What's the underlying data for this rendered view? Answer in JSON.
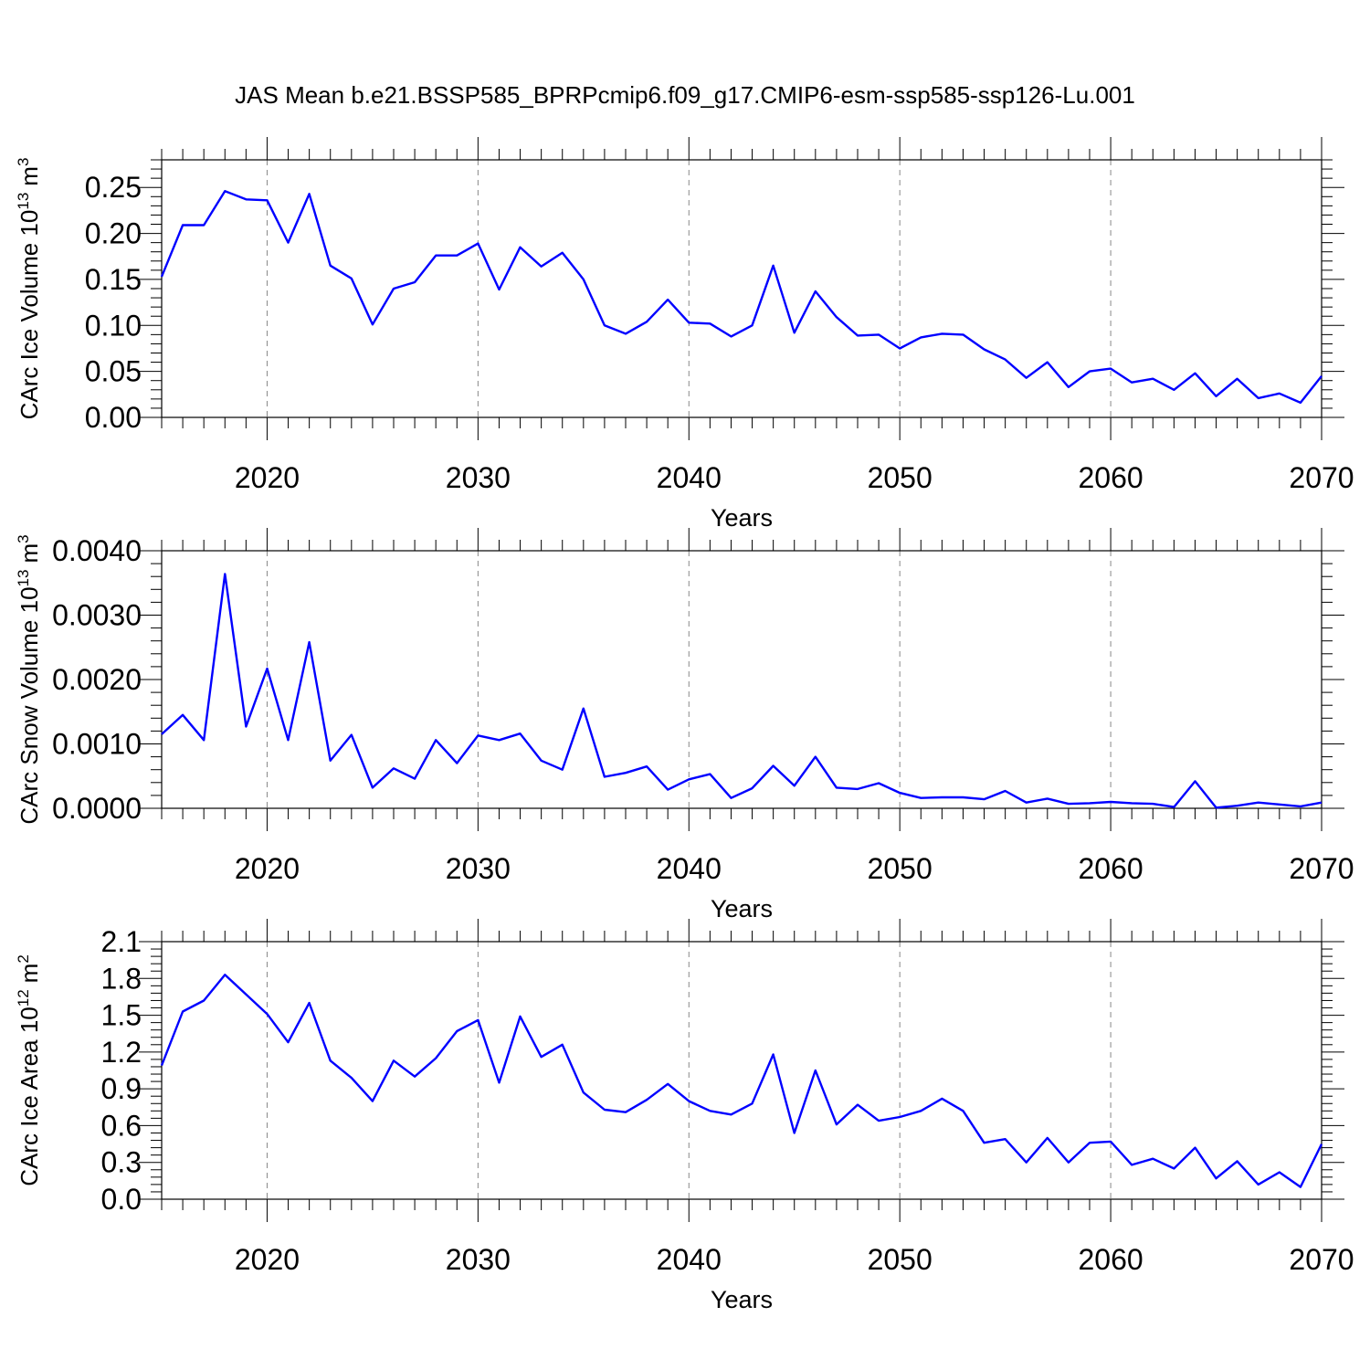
{
  "title": "JAS Mean b.e21.BSSP585_BPRPcmip6.f09_g17.CMIP6-esm-ssp585-ssp126-Lu.001",
  "line_color": "#0000ff",
  "chart_data": [
    {
      "type": "line",
      "ylabel": "CArc Ice Volume 10",
      "ylabel_sup": "13",
      "ylabel_unit": "m",
      "ylabel_unit_sup": "3",
      "xlabel": "Years",
      "xlim": [
        2015,
        2070
      ],
      "ylim": [
        0,
        0.28
      ],
      "yticks": [
        "0.00",
        "0.05",
        "0.10",
        "0.15",
        "0.20",
        "0.25"
      ],
      "xticks": [
        "2020",
        "2030",
        "2040",
        "2050",
        "2060",
        "2070"
      ],
      "grid": "dashed vertical at major x ticks",
      "series": [
        {
          "x": [
            2015,
            2016,
            2017,
            2018,
            2019,
            2020,
            2021,
            2022,
            2023,
            2024,
            2025,
            2026,
            2027,
            2028,
            2029,
            2030,
            2031,
            2032,
            2033,
            2034,
            2035,
            2036,
            2037,
            2038,
            2039,
            2040,
            2041,
            2042,
            2043,
            2044,
            2045,
            2046,
            2047,
            2048,
            2049,
            2050,
            2051,
            2052,
            2053,
            2054,
            2055,
            2056,
            2057,
            2058,
            2059,
            2060,
            2061,
            2062,
            2063,
            2064,
            2065,
            2066,
            2067,
            2068,
            2069,
            2070
          ],
          "values": [
            0.153,
            0.209,
            0.209,
            0.246,
            0.237,
            0.236,
            0.19,
            0.243,
            0.165,
            0.151,
            0.101,
            0.14,
            0.147,
            0.176,
            0.176,
            0.189,
            0.139,
            0.185,
            0.164,
            0.179,
            0.15,
            0.1,
            0.091,
            0.104,
            0.128,
            0.103,
            0.102,
            0.088,
            0.1,
            0.165,
            0.092,
            0.137,
            0.109,
            0.089,
            0.09,
            0.075,
            0.087,
            0.091,
            0.09,
            0.074,
            0.063,
            0.043,
            0.06,
            0.033,
            0.05,
            0.053,
            0.038,
            0.042,
            0.03,
            0.048,
            0.023,
            0.042,
            0.021,
            0.026,
            0.016,
            0.045
          ]
        }
      ]
    },
    {
      "type": "line",
      "ylabel": "CArc Snow Volume 10",
      "ylabel_sup": "13",
      "ylabel_unit": "m",
      "ylabel_unit_sup": "3",
      "xlabel": "Years",
      "xlim": [
        2015,
        2070
      ],
      "ylim": [
        0,
        0.004
      ],
      "yticks": [
        "0.0000",
        "0.0010",
        "0.0020",
        "0.0030",
        "0.0040"
      ],
      "xticks": [
        "2020",
        "2030",
        "2040",
        "2050",
        "2060",
        "2070"
      ],
      "grid": "dashed vertical at major x ticks",
      "series": [
        {
          "x": [
            2015,
            2016,
            2017,
            2018,
            2019,
            2020,
            2021,
            2022,
            2023,
            2024,
            2025,
            2026,
            2027,
            2028,
            2029,
            2030,
            2031,
            2032,
            2033,
            2034,
            2035,
            2036,
            2037,
            2038,
            2039,
            2040,
            2041,
            2042,
            2043,
            2044,
            2045,
            2046,
            2047,
            2048,
            2049,
            2050,
            2051,
            2052,
            2053,
            2054,
            2055,
            2056,
            2057,
            2058,
            2059,
            2060,
            2061,
            2062,
            2063,
            2064,
            2065,
            2066,
            2067,
            2068,
            2069,
            2070
          ],
          "values": [
            0.00115,
            0.00145,
            0.00106,
            0.00364,
            0.00127,
            0.00217,
            0.00106,
            0.00258,
            0.00074,
            0.00114,
            0.00032,
            0.00062,
            0.00046,
            0.00106,
            0.0007,
            0.00113,
            0.00106,
            0.00116,
            0.00074,
            0.0006,
            0.00155,
            0.00049,
            0.00055,
            0.00065,
            0.00029,
            0.00045,
            0.00053,
            0.00016,
            0.00031,
            0.00066,
            0.00035,
            0.0008,
            0.00032,
            0.0003,
            0.00039,
            0.00024,
            0.00016,
            0.00017,
            0.00017,
            0.00014,
            0.00027,
            9e-05,
            0.00015,
            7e-05,
            8e-05,
            0.0001,
            8e-05,
            7e-05,
            2e-05,
            0.00042,
            1e-05,
            4e-05,
            9e-05,
            6e-05,
            3e-05,
            9e-05
          ]
        }
      ]
    },
    {
      "type": "line",
      "ylabel": "CArc Ice Area 10",
      "ylabel_sup": "12",
      "ylabel_unit": "m",
      "ylabel_unit_sup": "2",
      "xlabel": "Years",
      "xlim": [
        2015,
        2070
      ],
      "ylim": [
        0,
        2.1
      ],
      "yticks": [
        "0.0",
        "0.3",
        "0.6",
        "0.9",
        "1.2",
        "1.5",
        "1.8",
        "2.1"
      ],
      "xticks": [
        "2020",
        "2030",
        "2040",
        "2050",
        "2060",
        "2070"
      ],
      "grid": "dashed vertical at major x ticks",
      "series": [
        {
          "x": [
            2015,
            2016,
            2017,
            2018,
            2019,
            2020,
            2021,
            2022,
            2023,
            2024,
            2025,
            2026,
            2027,
            2028,
            2029,
            2030,
            2031,
            2032,
            2033,
            2034,
            2035,
            2036,
            2037,
            2038,
            2039,
            2040,
            2041,
            2042,
            2043,
            2044,
            2045,
            2046,
            2047,
            2048,
            2049,
            2050,
            2051,
            2052,
            2053,
            2054,
            2055,
            2056,
            2057,
            2058,
            2059,
            2060,
            2061,
            2062,
            2063,
            2064,
            2065,
            2066,
            2067,
            2068,
            2069,
            2070
          ],
          "values": [
            1.09,
            1.53,
            1.62,
            1.83,
            1.67,
            1.51,
            1.28,
            1.6,
            1.13,
            0.99,
            0.8,
            1.13,
            1.0,
            1.15,
            1.37,
            1.46,
            0.95,
            1.49,
            1.16,
            1.26,
            0.87,
            0.73,
            0.71,
            0.81,
            0.94,
            0.8,
            0.72,
            0.69,
            0.78,
            1.18,
            0.54,
            1.05,
            0.61,
            0.77,
            0.64,
            0.67,
            0.72,
            0.82,
            0.72,
            0.46,
            0.49,
            0.3,
            0.5,
            0.3,
            0.46,
            0.47,
            0.28,
            0.33,
            0.25,
            0.42,
            0.17,
            0.31,
            0.12,
            0.22,
            0.1,
            0.45
          ]
        }
      ]
    }
  ]
}
